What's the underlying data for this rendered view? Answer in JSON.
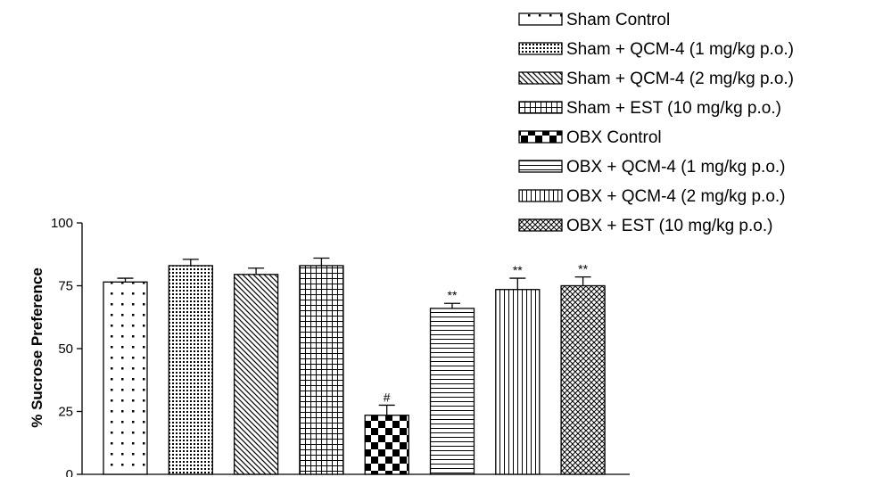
{
  "chart_data": {
    "type": "bar",
    "title": "",
    "xlabel": "",
    "ylabel": "% Sucrose Preference",
    "ylim": [
      0,
      100
    ],
    "yticks": [
      0,
      25,
      50,
      75,
      100
    ],
    "grid": false,
    "legend_position": "top-right",
    "categories": [
      "Sham Control",
      "Sham + QCM-4 (1 mg/kg p.o.)",
      "Sham + QCM-4 (2 mg/kg p.o.)",
      "Sham + EST (10 mg/kg p.o.)",
      "OBX Control",
      "OBX + QCM-4 (1 mg/kg p.o.)",
      "OBX + QCM-4 (2 mg/kg p.o.)",
      "OBX + EST (10 mg/kg p.o.)"
    ],
    "patterns": [
      "sparse-dots",
      "dense-dots",
      "diagonal",
      "grid",
      "checker",
      "horizontal",
      "vertical",
      "crosshatch"
    ],
    "values": [
      76.5,
      83,
      79.5,
      83,
      23.5,
      66,
      73.5,
      75
    ],
    "errors": [
      1.5,
      2.5,
      2.5,
      3,
      4,
      2,
      4.5,
      3.5
    ],
    "annotations": [
      "",
      "",
      "",
      "",
      "#",
      "**",
      "**",
      "**"
    ]
  }
}
